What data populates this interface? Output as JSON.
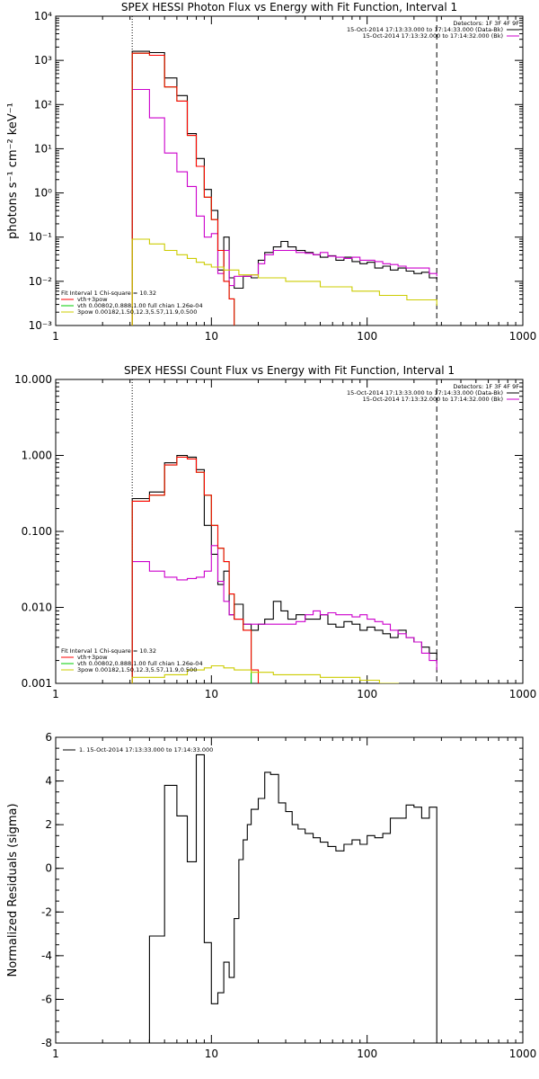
{
  "chart_data": [
    {
      "type": "line",
      "title": "SPEX HESSI Photon Flux vs Energy with Fit Function, Interval 1",
      "xlabel": "",
      "ylabel": "photons s⁻¹ cm⁻² keV⁻¹",
      "xscale": "log",
      "yscale": "log",
      "xlim": [
        1,
        1000
      ],
      "ylim": [
        0.001,
        10000
      ],
      "xticks": [
        1,
        10,
        100,
        1000
      ],
      "xticklabels": [
        "1",
        "10",
        "100",
        "1000"
      ],
      "yticks": [
        0.001,
        0.01,
        0.1,
        1,
        10,
        100,
        1000,
        10000
      ],
      "yticklabels": [
        "10⁻³",
        "10⁻²",
        "10⁻¹",
        "10⁰",
        "10¹",
        "10²",
        "10³",
        "10⁴"
      ],
      "vlines": [
        {
          "x": 3.1,
          "style": "dotted"
        },
        {
          "x": 280,
          "style": "dashed"
        }
      ],
      "legend_right": {
        "position": "top-right",
        "header": "Detectors: 1F 3F 4F 9F",
        "entries": [
          {
            "text": "15-Oct-2014 17:13:33.000 to 17:14:33.000 (Data-Bk)",
            "color": "#000000"
          },
          {
            "text": "15-Oct-2014 17:13:32.000 to 17:14:32.000 (Bk)",
            "color": "#cc00cc"
          }
        ]
      },
      "legend_left": {
        "position": "bottom-left",
        "header": "Fit Interval 1     Chi-square = 10.32",
        "entries": [
          {
            "text": "vth+3pow",
            "color": "#ff0000"
          },
          {
            "text": "vth 0.00802,0.888,1.00  full chian 1.26e-04",
            "color": "#00cc00"
          },
          {
            "text": "3pow 0.00182,1.50,12.3,5.57,11.9,0.500",
            "color": "#cccc00"
          }
        ]
      },
      "series": [
        {
          "color": "#000000",
          "x": [
            3.1,
            4.0,
            5.0,
            6.0,
            7.0,
            8.0,
            9.0,
            10.0,
            11.0,
            12.0,
            13.0,
            14.0,
            16.0,
            18.0,
            20.0,
            22.0,
            25.0,
            28.0,
            31.0,
            35.0,
            40.0,
            45.0,
            50.0,
            56.0,
            63.0,
            71.0,
            80.0,
            90.0,
            100.0,
            112.0,
            126.0,
            141.0,
            158.0,
            178.0,
            200.0,
            224.0,
            251.0,
            280.0
          ],
          "y": [
            1600,
            1500,
            400,
            160,
            22,
            6,
            1.2,
            0.4,
            0.018,
            0.1,
            0.012,
            0.007,
            0.013,
            0.012,
            0.03,
            0.045,
            0.06,
            0.08,
            0.06,
            0.05,
            0.045,
            0.04,
            0.035,
            0.038,
            0.03,
            0.035,
            0.028,
            0.025,
            0.027,
            0.02,
            0.022,
            0.018,
            0.02,
            0.017,
            0.015,
            0.016,
            0.012,
            0.011
          ]
        },
        {
          "color": "#cc00cc",
          "x": [
            3.1,
            4.0,
            5.0,
            6.0,
            7.0,
            8.0,
            9.0,
            10.0,
            11.0,
            12.0,
            13.0,
            14.0,
            16.0,
            18.0,
            20.0,
            22.0,
            25.0,
            28.0,
            31.0,
            35.0,
            40.0,
            45.0,
            50.0,
            56.0,
            63.0,
            71.0,
            80.0,
            90.0,
            100.0,
            112.0,
            126.0,
            141.0,
            158.0,
            178.0,
            200.0,
            224.0,
            251.0,
            280.0
          ],
          "y": [
            220,
            50,
            8,
            3,
            1.4,
            0.3,
            0.1,
            0.12,
            0.015,
            0.05,
            0.008,
            0.013,
            0.013,
            0.014,
            0.025,
            0.04,
            0.05,
            0.05,
            0.05,
            0.045,
            0.043,
            0.04,
            0.045,
            0.037,
            0.035,
            0.033,
            0.035,
            0.03,
            0.03,
            0.028,
            0.025,
            0.024,
            0.022,
            0.02,
            0.02,
            0.02,
            0.015,
            0.013
          ]
        },
        {
          "color": "#00cc00",
          "x": [
            3.1,
            4.0,
            5.0,
            6.0,
            7.0,
            8.0,
            9.0,
            10.0,
            11.0,
            12.0,
            13.0,
            14.0
          ],
          "y": [
            1450,
            1300,
            250,
            120,
            20,
            4,
            0.8,
            0.25,
            0.05,
            0.01,
            0.004,
            0.001
          ]
        },
        {
          "color": "#ff0000",
          "x": [
            3.1,
            4.0,
            5.0,
            6.0,
            7.0,
            8.0,
            9.0,
            10.0,
            11.0,
            12.0,
            13.0,
            14.0
          ],
          "y": [
            1450,
            1300,
            250,
            120,
            20,
            4,
            0.8,
            0.25,
            0.05,
            0.01,
            0.004,
            0.001
          ]
        },
        {
          "color": "#cccc00",
          "x": [
            3.1,
            4.0,
            5.0,
            6.0,
            7.0,
            8.0,
            9.0,
            10.0,
            12.0,
            15.0,
            20.0,
            30.0,
            50.0,
            80.0,
            120.0,
            180.0,
            280.0
          ],
          "y": [
            0.09,
            0.07,
            0.05,
            0.04,
            0.033,
            0.027,
            0.024,
            0.021,
            0.018,
            0.014,
            0.012,
            0.01,
            0.0075,
            0.006,
            0.0048,
            0.0038,
            0.0028
          ]
        }
      ]
    },
    {
      "type": "line",
      "title": "SPEX HESSI Count Flux vs Energy with Fit Function, Interval 1",
      "xlabel": "",
      "ylabel": "",
      "xscale": "log",
      "yscale": "log",
      "xlim": [
        1,
        1000
      ],
      "ylim": [
        0.001,
        10
      ],
      "xticks": [
        1,
        10,
        100,
        1000
      ],
      "xticklabels": [
        "1",
        "10",
        "100",
        "1000"
      ],
      "yticks": [
        0.001,
        0.01,
        0.1,
        1,
        10
      ],
      "yticklabels": [
        "0.001",
        "0.010",
        "0.100",
        "1.000",
        "10.000"
      ],
      "vlines": [
        {
          "x": 3.1,
          "style": "dotted"
        },
        {
          "x": 280,
          "style": "dashed"
        }
      ],
      "legend_right": {
        "position": "top-right",
        "header": "Detectors: 1F 3F 4F 9F",
        "entries": [
          {
            "text": "15-Oct-2014 17:13:33.000 to 17:14:33.000 (Data-Bk)",
            "color": "#000000"
          },
          {
            "text": "15-Oct-2014 17:13:32.000 to 17:14:32.000 (Bk)",
            "color": "#cc00cc"
          }
        ]
      },
      "legend_left": {
        "position": "bottom-left",
        "header": "Fit Interval 1     Chi-square = 10.32",
        "entries": [
          {
            "text": "vth+3pow",
            "color": "#ff0000"
          },
          {
            "text": "vth 0.00802,0.888,1.00  full chian 1.26e-04",
            "color": "#00cc00"
          },
          {
            "text": "3pow 0.00182,1.50,12.3,5.57,11.9,0.500",
            "color": "#cccc00"
          }
        ]
      },
      "series": [
        {
          "color": "#000000",
          "x": [
            3.1,
            4.0,
            5.0,
            6.0,
            7.0,
            8.0,
            9.0,
            10.0,
            11.0,
            12.0,
            13.0,
            14.0,
            16.0,
            18.0,
            20.0,
            22.0,
            25.0,
            28.0,
            31.0,
            35.0,
            40.0,
            45.0,
            50.0,
            56.0,
            63.0,
            71.0,
            80.0,
            90.0,
            100.0,
            112.0,
            126.0,
            141.0,
            158.0,
            178.0,
            200.0,
            224.0,
            251.0,
            280.0
          ],
          "y": [
            0.27,
            0.33,
            0.8,
            1.0,
            0.95,
            0.65,
            0.12,
            0.05,
            0.02,
            0.03,
            0.008,
            0.011,
            0.006,
            0.005,
            0.006,
            0.007,
            0.012,
            0.009,
            0.007,
            0.008,
            0.007,
            0.007,
            0.008,
            0.006,
            0.0055,
            0.0065,
            0.006,
            0.005,
            0.0055,
            0.005,
            0.0045,
            0.004,
            0.005,
            0.004,
            0.0035,
            0.003,
            0.0025,
            0.002
          ]
        },
        {
          "color": "#cc00cc",
          "x": [
            3.1,
            4.0,
            5.0,
            6.0,
            7.0,
            8.0,
            9.0,
            10.0,
            11.0,
            12.0,
            13.0,
            14.0,
            16.0,
            18.0,
            20.0,
            22.0,
            25.0,
            28.0,
            31.0,
            35.0,
            40.0,
            45.0,
            50.0,
            56.0,
            63.0,
            71.0,
            80.0,
            90.0,
            100.0,
            112.0,
            126.0,
            141.0,
            158.0,
            178.0,
            200.0,
            224.0,
            251.0,
            280.0
          ],
          "y": [
            0.04,
            0.03,
            0.025,
            0.023,
            0.024,
            0.025,
            0.03,
            0.065,
            0.022,
            0.012,
            0.008,
            0.007,
            0.006,
            0.006,
            0.006,
            0.006,
            0.006,
            0.006,
            0.006,
            0.0065,
            0.008,
            0.009,
            0.008,
            0.0085,
            0.008,
            0.008,
            0.0075,
            0.008,
            0.007,
            0.0065,
            0.006,
            0.005,
            0.0045,
            0.004,
            0.0035,
            0.0025,
            0.002,
            0.0015
          ]
        },
        {
          "color": "#00cc00",
          "x": [
            3.1,
            4.0,
            5.0,
            6.0,
            7.0,
            8.0,
            9.0,
            10.0,
            11.0,
            12.0,
            13.0,
            14.0,
            16.0,
            18.0
          ],
          "y": [
            0.25,
            0.3,
            0.75,
            0.95,
            0.9,
            0.6,
            0.3,
            0.12,
            0.06,
            0.04,
            0.015,
            0.007,
            0.005,
            0.001
          ]
        },
        {
          "color": "#ff0000",
          "x": [
            3.1,
            4.0,
            5.0,
            6.0,
            7.0,
            8.0,
            9.0,
            10.0,
            11.0,
            12.0,
            13.0,
            14.0,
            16.0,
            18.0,
            20.0
          ],
          "y": [
            0.25,
            0.3,
            0.75,
            0.95,
            0.9,
            0.6,
            0.3,
            0.12,
            0.06,
            0.04,
            0.015,
            0.007,
            0.005,
            0.0015,
            0.001
          ]
        },
        {
          "color": "#cccc00",
          "x": [
            3.1,
            5.0,
            7.0,
            9.0,
            10.0,
            12.0,
            14.0,
            18.0,
            25.0,
            35.0,
            50.0,
            70.0,
            90.0,
            120.0,
            160.0
          ],
          "y": [
            0.0012,
            0.0013,
            0.0015,
            0.0016,
            0.0017,
            0.0016,
            0.0015,
            0.0014,
            0.0013,
            0.0013,
            0.0012,
            0.0012,
            0.0011,
            0.001,
            0.001
          ]
        }
      ]
    },
    {
      "type": "line",
      "title": "",
      "xlabel": "",
      "ylabel": "Normalized Residuals (sigma)",
      "xscale": "log",
      "yscale": "linear",
      "xlim": [
        1,
        1000
      ],
      "ylim": [
        -8,
        6
      ],
      "xticks": [
        1,
        10,
        100,
        1000
      ],
      "xticklabels": [
        "1",
        "10",
        "100",
        "1000"
      ],
      "yticks": [
        -8,
        -6,
        -4,
        -2,
        0,
        2,
        4,
        6
      ],
      "yticklabels": [
        "-8",
        "-6",
        "-4",
        "-2",
        "0",
        "2",
        "4",
        "6"
      ],
      "vlines": [],
      "legend_top": {
        "position": "top-left",
        "entries": [
          {
            "text": "1. 15-Oct-2014 17:13:33.000 to 17:14:33.000",
            "color": "#000000"
          }
        ]
      },
      "series": [
        {
          "color": "#000000",
          "x": [
            3.1,
            4.0,
            5.0,
            6.0,
            7.0,
            8.0,
            9.0,
            10.0,
            11.0,
            12.0,
            13.0,
            14.0,
            15.0,
            16.0,
            17.0,
            18.0,
            20.0,
            22.0,
            24.0,
            27.0,
            30.0,
            33.0,
            36.0,
            40.0,
            45.0,
            50.0,
            56.0,
            63.0,
            71.0,
            80.0,
            90.0,
            100.0,
            112.0,
            126.0,
            141.0,
            158.0,
            178.0,
            200.0,
            224.0,
            251.0,
            280.0
          ],
          "y": [
            -8,
            -3.1,
            3.8,
            2.4,
            0.3,
            5.2,
            -3.4,
            -6.2,
            -5.7,
            -4.3,
            -5.0,
            -2.3,
            0.4,
            1.3,
            2.0,
            2.7,
            3.2,
            4.4,
            4.3,
            3.0,
            2.6,
            2.0,
            1.8,
            1.6,
            1.4,
            1.2,
            1.0,
            0.8,
            1.1,
            1.3,
            1.1,
            1.5,
            1.4,
            1.6,
            2.3,
            2.3,
            2.9,
            2.8,
            2.3,
            2.8,
            -8
          ]
        }
      ]
    }
  ]
}
